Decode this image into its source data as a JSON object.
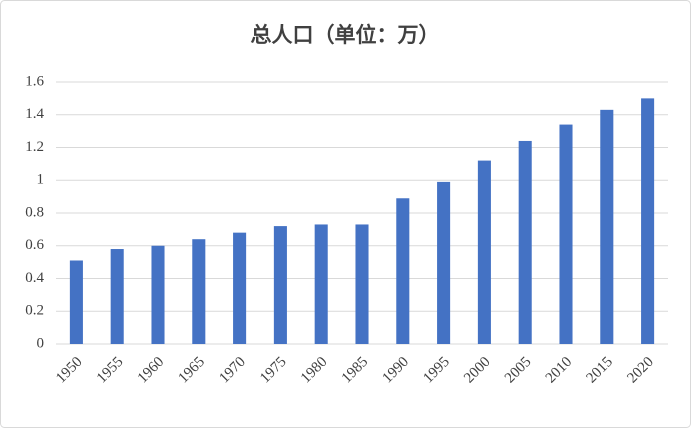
{
  "chart_data": {
    "type": "bar",
    "title": "总人口（单位：万）",
    "categories": [
      "1950",
      "1955",
      "1960",
      "1965",
      "1970",
      "1975",
      "1980",
      "1985",
      "1990",
      "1995",
      "2000",
      "2005",
      "2010",
      "2015",
      "2020"
    ],
    "values": [
      0.51,
      0.58,
      0.6,
      0.64,
      0.68,
      0.72,
      0.73,
      0.73,
      0.89,
      0.99,
      1.12,
      1.24,
      1.34,
      1.43,
      1.5
    ],
    "color": "#4472c4",
    "ylim": [
      0,
      1.6
    ],
    "yticks": [
      0,
      0.2,
      0.4,
      0.6,
      0.8,
      1,
      1.2,
      1.4,
      1.6
    ],
    "grid": true
  }
}
